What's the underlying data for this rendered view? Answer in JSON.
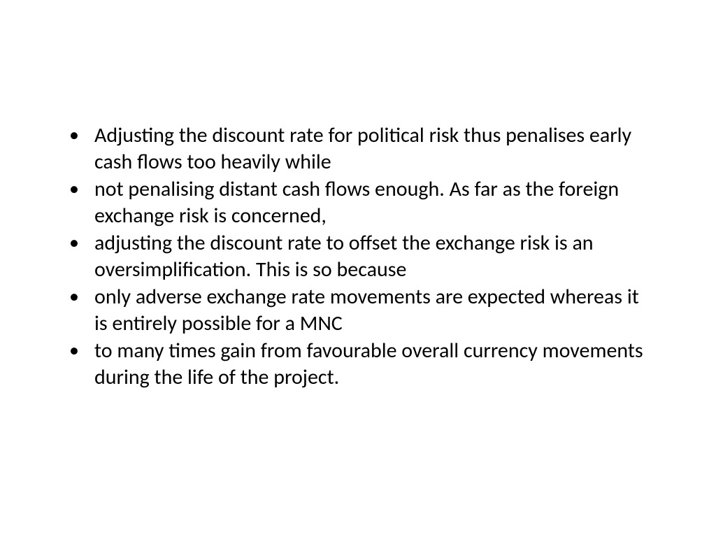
{
  "slide": {
    "background_color": "#ffffff",
    "text_color": "#000000",
    "font_family": "Calibri",
    "font_size_pt": 30,
    "line_height": 1.25,
    "bullets": [
      "Adjusting the discount rate for political risk thus penalises early cash flows too heavily while",
      "not penalising distant cash flows enough. As far as the foreign exchange risk is concerned,",
      "adjusting the discount rate to offset the exchange risk is an oversimplification. This is so because",
      "only adverse exchange rate movements are expected whereas it is entirely possible for a MNC",
      "to many times gain from favourable overall currency movements during the life of the project."
    ]
  }
}
